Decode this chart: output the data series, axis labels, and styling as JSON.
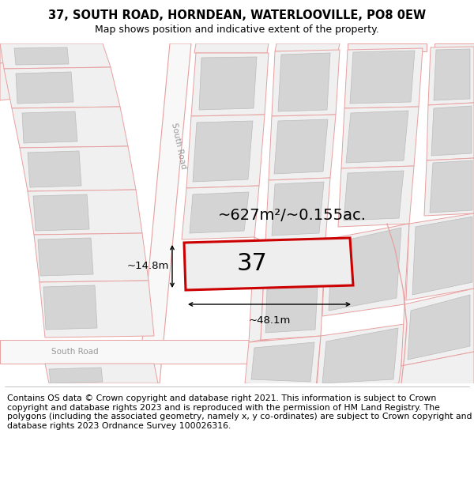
{
  "title_line1": "37, SOUTH ROAD, HORNDEAN, WATERLOOVILLE, PO8 0EW",
  "title_line2": "Map shows position and indicative extent of the property.",
  "footer_text": "Contains OS data © Crown copyright and database right 2021. This information is subject to Crown copyright and database rights 2023 and is reproduced with the permission of HM Land Registry. The polygons (including the associated geometry, namely x, y co-ordinates) are subject to Crown copyright and database rights 2023 Ordnance Survey 100026316.",
  "area_label": "~627m²/~0.155ac.",
  "number_label": "37",
  "dim_width": "~48.1m",
  "dim_height": "~14.8m",
  "road_label_diag": "South Road",
  "road_label_horiz": "South Road",
  "bg_color": "#ffffff",
  "road_line_color": "#e8a0a0",
  "plot_fill": "#f0f0f0",
  "building_fill": "#d4d4d4",
  "prop_fill": "#eeeeee",
  "prop_border": "#cc0000",
  "title_fontsize": 10.5,
  "subtitle_fontsize": 9.0,
  "footer_fontsize": 7.8,
  "area_fontsize": 14,
  "number_fontsize": 22,
  "dim_fontsize": 9.5
}
